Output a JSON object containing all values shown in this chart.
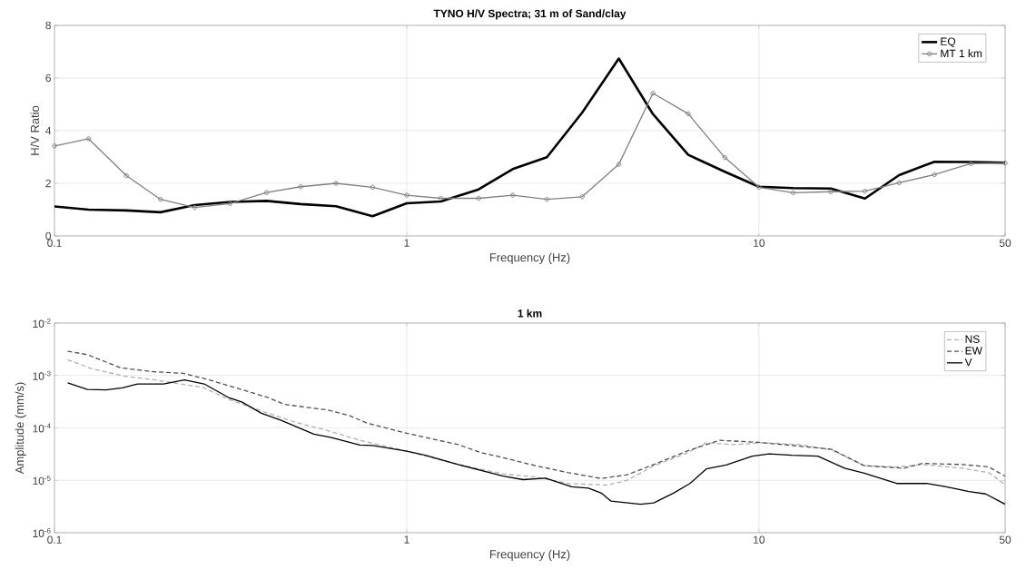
{
  "chart_data": [
    {
      "type": "line",
      "title": "TYNO H/V Spectra; 31 m of Sand/clay",
      "xlabel": "Frequency (Hz)",
      "ylabel": "H/V Ratio",
      "log": "x",
      "grid": true,
      "legend": "top right",
      "xlim": [
        0.1,
        50
      ],
      "ylim": [
        0,
        8
      ],
      "xticks": [
        0.1,
        1,
        10,
        50
      ],
      "yticks": [
        0,
        2,
        4,
        6,
        8
      ],
      "x": [
        0.1,
        0.125,
        0.16,
        0.2,
        0.25,
        0.315,
        0.4,
        0.5,
        0.63,
        0.8,
        1,
        1.25,
        1.6,
        2,
        2.5,
        3.15,
        4,
        5,
        6.3,
        8,
        10,
        12.5,
        16,
        20,
        25,
        31.5,
        40,
        50
      ],
      "series": [
        {
          "name": "EQ",
          "color": "#000000",
          "marker": "none",
          "line_style": "solid",
          "values": [
            1.12,
            1.0,
            0.97,
            0.9,
            1.17,
            1.29,
            1.33,
            1.21,
            1.13,
            0.75,
            1.24,
            1.31,
            1.77,
            2.54,
            2.99,
            4.69,
            6.74,
            4.63,
            3.08,
            2.44,
            1.87,
            1.82,
            1.8,
            1.42,
            2.31,
            2.82,
            2.81,
            2.78
          ]
        },
        {
          "name": "MT 1 km",
          "color": "#808080",
          "marker": "circle",
          "line_style": "solid",
          "values": [
            3.42,
            3.69,
            2.29,
            1.39,
            1.08,
            1.23,
            1.65,
            1.87,
            2.0,
            1.85,
            1.55,
            1.43,
            1.43,
            1.55,
            1.39,
            1.49,
            2.72,
            5.42,
            4.64,
            2.98,
            1.85,
            1.64,
            1.68,
            1.7,
            2.02,
            2.33,
            2.75,
            2.77
          ]
        }
      ]
    },
    {
      "type": "line",
      "title": "1 km",
      "xlabel": "Frequency (Hz)",
      "ylabel": "Amplitude (mm/s)",
      "log": "xy",
      "grid": true,
      "legend": "top right",
      "xlim": [
        0.1,
        50
      ],
      "ylim": [
        1e-06,
        0.01
      ],
      "xticks": [
        0.1,
        1,
        10,
        50
      ],
      "yticks": [
        {
          "value": 1e-06,
          "label": "10$^{-6}$"
        },
        {
          "value": 1e-05,
          "label": "10$^{-5}$"
        },
        {
          "value": 0.0001,
          "label": "10$^{-4}$"
        },
        {
          "value": 0.001,
          "label": "10$^{-3}$"
        },
        {
          "value": 0.01,
          "label": "10$^{-2}$"
        }
      ],
      "series": [
        {
          "name": "NS",
          "color": "#b0b0b0",
          "marker": "none",
          "line_style": "dashed",
          "x": [
            0.109,
            0.127,
            0.158,
            0.191,
            0.227,
            0.263,
            0.312,
            0.387,
            0.48,
            0.595,
            0.736,
            1.0,
            1.4,
            1.88,
            2.32,
            2.88,
            3.72,
            4.23,
            5.03,
            6.24,
            7.09,
            8.42,
            10.4,
            13.0,
            16.1,
            19.9,
            24.6,
            29.2,
            37.8,
            44.9,
            50
          ],
          "values": [
            0.002,
            0.00136,
            0.00097,
            0.00083,
            0.00069,
            0.0006,
            0.00035,
            0.00021,
            0.00013,
            8.9e-05,
            5.8e-05,
            3.6e-05,
            2e-05,
            1.33e-05,
            1.15e-05,
            8.7e-06,
            8.1e-06,
            1e-05,
            1.9e-05,
            3.3e-05,
            5.2e-05,
            4.8e-05,
            5.2e-05,
            4.8e-05,
            3.8e-05,
            1.9e-05,
            1.8e-05,
            2e-05,
            1.7e-05,
            1.4e-05,
            8.3e-06
          ]
        },
        {
          "name": "EW",
          "color": "#505050",
          "marker": "none",
          "line_style": "dashed",
          "x": [
            0.109,
            0.124,
            0.154,
            0.191,
            0.232,
            0.269,
            0.312,
            0.404,
            0.45,
            0.595,
            0.69,
            0.768,
            1.0,
            1.4,
            1.62,
            1.88,
            2.32,
            2.88,
            3.57,
            4.23,
            5.03,
            6.24,
            7.73,
            10.0,
            13.0,
            16.1,
            19.9,
            25.7,
            29.2,
            37.8,
            44.9,
            50
          ],
          "values": [
            0.0029,
            0.0025,
            0.0014,
            0.00118,
            0.0011,
            0.00086,
            0.00064,
            0.00038,
            0.00028,
            0.00022,
            0.00017,
            0.000125,
            7.9e-05,
            4.8e-05,
            3.4e-05,
            2.7e-05,
            1.9e-05,
            1.4e-05,
            1.08e-05,
            1.28e-05,
            2e-05,
            3.6e-05,
            5.8e-05,
            5.3e-05,
            4.5e-05,
            3.9e-05,
            1.9e-05,
            1.7e-05,
            2.1e-05,
            2e-05,
            1.8e-05,
            1.2e-05
          ]
        },
        {
          "name": "V",
          "color": "#000000",
          "marker": "none",
          "line_style": "solid",
          "x": [
            0.109,
            0.124,
            0.14,
            0.156,
            0.172,
            0.204,
            0.234,
            0.266,
            0.312,
            0.341,
            0.387,
            0.44,
            0.545,
            0.607,
            0.736,
            0.8,
            1.0,
            1.13,
            1.4,
            1.88,
            2.14,
            2.48,
            2.94,
            3.28,
            3.57,
            3.8,
            4.61,
            5.03,
            5.72,
            6.37,
            7.09,
            8.07,
            9.58,
            10.7,
            12.4,
            14.7,
            17.5,
            19.9,
            24.6,
            29.9,
            34.0,
            39.5,
            44.0,
            50
          ],
          "values": [
            0.00072,
            0.00054,
            0.00053,
            0.00058,
            0.00069,
            0.00069,
            0.00082,
            0.00069,
            0.00038,
            0.00031,
            0.00019,
            0.00014,
            7.6e-05,
            6.6e-05,
            4.7e-05,
            4.6e-05,
            3.6e-05,
            3e-05,
            2e-05,
            1.2e-05,
            1.03e-05,
            1.1e-05,
            7.5e-06,
            7.1e-06,
            5.7e-06,
            4e-06,
            3.5e-06,
            3.7e-06,
            5.7e-06,
            8.7e-06,
            1.65e-05,
            1.96e-05,
            2.9e-05,
            3.2e-05,
            3e-05,
            2.9e-05,
            1.7e-05,
            1.37e-05,
            8.7e-06,
            8.7e-06,
            7.5e-06,
            6.1e-06,
            5.5e-06,
            3.5e-06
          ]
        }
      ]
    }
  ]
}
